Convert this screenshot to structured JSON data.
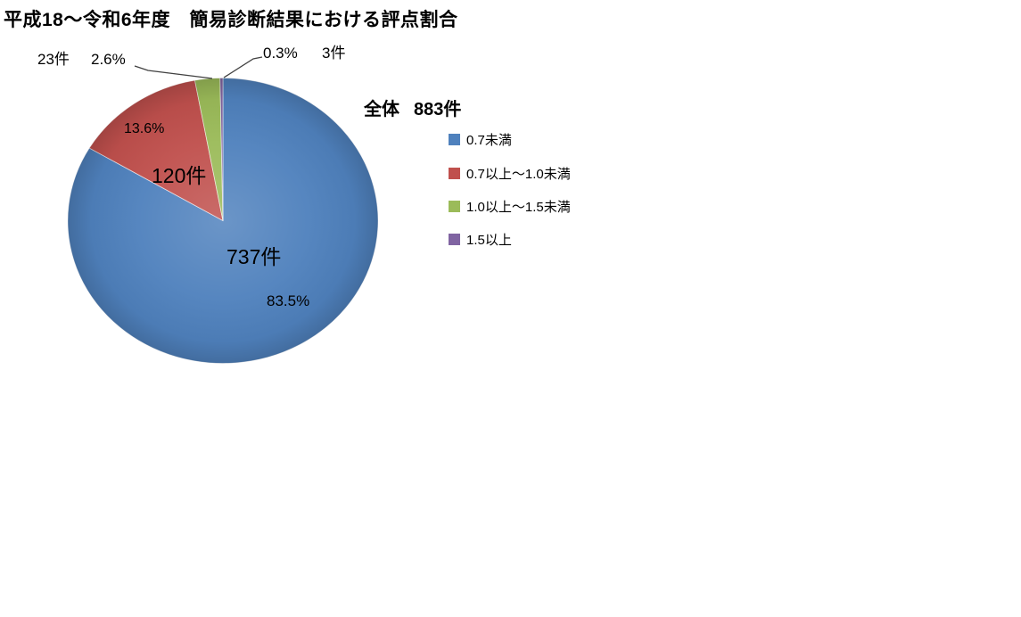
{
  "page": {
    "background": "#FFFFFF"
  },
  "chart_data": {
    "type": "pie",
    "title": "平成18～令和6年度　簡易診断結果における評点割合",
    "total": {
      "label": "全体",
      "count": 883,
      "count_label": "883件"
    },
    "start_angle_deg": 0,
    "direction": "clockwise",
    "legend_position": "right",
    "grid": false,
    "leader_line_color": "#404040",
    "slices": [
      {
        "label": "0.7未満",
        "value": 737,
        "value_label": "737件",
        "percent": 83.5,
        "percent_label": "83.5%",
        "color": "#4F81BD"
      },
      {
        "label": "0.7以上～1.0未満",
        "value": 120,
        "value_label": "120件",
        "percent": 13.6,
        "percent_label": "13.6%",
        "color": "#C0504D"
      },
      {
        "label": "1.0以上～1.5未満",
        "value": 23,
        "value_label": "23件",
        "percent": 2.6,
        "percent_label": "2.6%",
        "color": "#9BBB59"
      },
      {
        "label": "1.5以上",
        "value": 3,
        "value_label": "3件",
        "percent": 0.3,
        "percent_label": "0.3%",
        "color": "#8064A2"
      }
    ]
  }
}
